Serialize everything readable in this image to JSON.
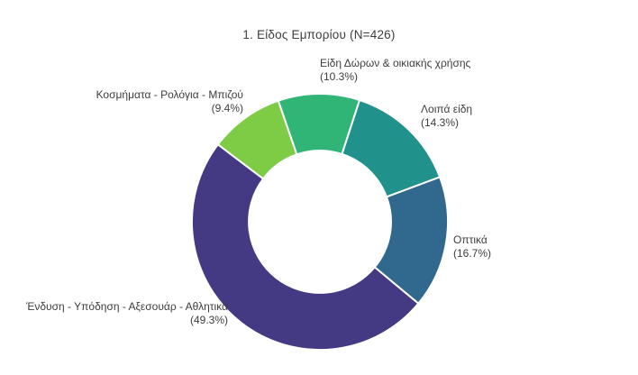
{
  "chart_data": {
    "type": "pie",
    "subtype": "donut",
    "title": "1. Είδος Εμπορίου (N=426)",
    "n": 426,
    "hole": 0.556,
    "start_angle_deg": -19,
    "direction": "clockwise",
    "legend": "none",
    "labels": [
      "Είδη Δώρων & οικιακής χρήσης",
      "Λοιπά είδη",
      "Οπτικά",
      "Ένδυση - Υπόδηση - Αξεσουάρ - Αθλητικά",
      "Κοσμήματα - Ρολόγια - Μπιζού"
    ],
    "values": [
      10.3,
      14.3,
      16.7,
      49.3,
      9.4
    ],
    "pct_labels": [
      "(10.3%)",
      "(14.3%)",
      "(16.7%)",
      "(49.3%)",
      "(9.4%)"
    ],
    "colors": [
      "#31b577",
      "#21918c",
      "#31688e",
      "#443983",
      "#7ecb45"
    ],
    "separator_color": "#ffffff"
  }
}
